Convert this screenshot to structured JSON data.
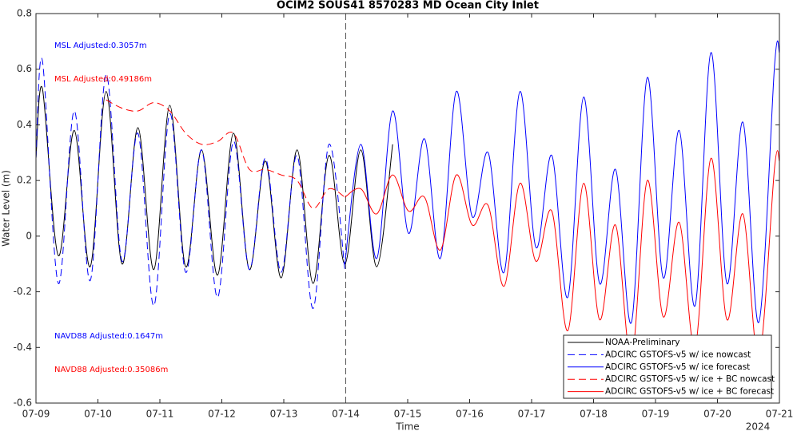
{
  "chart_data": {
    "type": "line",
    "title": "OCIM2 SOUS41 8570283 MD Ocean City Inlet",
    "xlabel": "Time",
    "ylabel": "Water Level (m)",
    "xaxis_year": "2024",
    "x": [
      "2024-07-09T00:00",
      "2024-07-09T02:30",
      "2024-07-09T08:40",
      "2024-07-09T14:50",
      "2024-07-09T21:00",
      "2024-07-10T03:10",
      "2024-07-10T09:20",
      "2024-07-10T15:30",
      "2024-07-10T21:40",
      "2024-07-11T03:50",
      "2024-07-11T10:00",
      "2024-07-11T16:10",
      "2024-07-11T22:20",
      "2024-07-12T04:30",
      "2024-07-12T10:40",
      "2024-07-12T16:50",
      "2024-07-12T23:00",
      "2024-07-13T05:10",
      "2024-07-13T11:20",
      "2024-07-13T17:30",
      "2024-07-13T23:40",
      "2024-07-14T05:50",
      "2024-07-14T12:00",
      "2024-07-14T18:10",
      "2024-07-15T00:20",
      "2024-07-15T06:30",
      "2024-07-15T12:40",
      "2024-07-15T18:50",
      "2024-07-16T01:00",
      "2024-07-16T07:10",
      "2024-07-16T13:20",
      "2024-07-16T19:30",
      "2024-07-17T01:40",
      "2024-07-17T07:50",
      "2024-07-17T14:00",
      "2024-07-17T20:10",
      "2024-07-18T02:20",
      "2024-07-18T08:30",
      "2024-07-18T14:40",
      "2024-07-18T20:50",
      "2024-07-19T03:00",
      "2024-07-19T09:10",
      "2024-07-19T15:20",
      "2024-07-19T21:30",
      "2024-07-20T03:40",
      "2024-07-20T09:50",
      "2024-07-20T16:00",
      "2024-07-20T22:10",
      "2024-07-21T00:00"
    ],
    "series": [
      {
        "name": "NOAA-Preliminary",
        "color": "#000000",
        "dashed": false,
        "values": [
          0.28,
          0.53,
          -0.07,
          0.38,
          -0.11,
          0.52,
          -0.1,
          0.39,
          -0.12,
          0.47,
          -0.11,
          0.31,
          -0.14,
          0.37,
          -0.12,
          0.27,
          -0.15,
          0.31,
          -0.17,
          0.29,
          -0.1,
          0.31,
          -0.11,
          0.33,
          null,
          null,
          null,
          null,
          null,
          null,
          null,
          null,
          null,
          null,
          null,
          null,
          null,
          null,
          null,
          null,
          null,
          null,
          null,
          null,
          null,
          null,
          null,
          null,
          null
        ]
      },
      {
        "name": "ADCIRC GSTOFS-v5 w/ ice nowcast",
        "color": "#0000ff",
        "dashed": true,
        "values": [
          0.28,
          0.63,
          -0.17,
          0.45,
          -0.16,
          0.58,
          -0.09,
          0.37,
          -0.25,
          0.44,
          -0.13,
          0.31,
          -0.22,
          0.34,
          -0.12,
          0.28,
          -0.13,
          0.29,
          -0.26,
          0.33,
          -0.12,
          null,
          null,
          null,
          null,
          null,
          null,
          null,
          null,
          null,
          null,
          null,
          null,
          null,
          null,
          null,
          null,
          null,
          null,
          null,
          null,
          null,
          null,
          null,
          null,
          null,
          null,
          null,
          null
        ]
      },
      {
        "name": "ADCIRC GSTOFS-v5 w/ ice forecast",
        "color": "#0000ff",
        "dashed": false,
        "values": [
          null,
          null,
          null,
          null,
          null,
          null,
          null,
          null,
          null,
          null,
          null,
          null,
          null,
          null,
          null,
          null,
          null,
          null,
          null,
          null,
          -0.1,
          0.33,
          -0.08,
          0.45,
          0.01,
          0.35,
          -0.08,
          0.52,
          0.07,
          0.3,
          -0.13,
          0.52,
          -0.04,
          0.29,
          -0.22,
          0.5,
          -0.17,
          0.24,
          -0.31,
          0.57,
          -0.15,
          0.38,
          -0.25,
          0.66,
          -0.17,
          0.41,
          -0.31,
          0.62,
          0.66
        ]
      },
      {
        "name": "ADCIRC GSTOFS-v5 w/ ice + BC nowcast",
        "color": "#ff0000",
        "dashed": true,
        "values": [
          null,
          null,
          null,
          null,
          null,
          0.49,
          0.46,
          0.45,
          0.48,
          0.45,
          0.37,
          0.33,
          0.34,
          0.37,
          0.24,
          0.24,
          0.22,
          0.2,
          0.1,
          0.17,
          0.14,
          null,
          null,
          null,
          null,
          null,
          null,
          null,
          null,
          null,
          null,
          null,
          null,
          null,
          null,
          null,
          null,
          null,
          null,
          null,
          null,
          null,
          null,
          null,
          null,
          null,
          null,
          null,
          null
        ]
      },
      {
        "name": "ADCIRC GSTOFS-v5 w/ ice + BC forecast",
        "color": "#ff0000",
        "dashed": false,
        "values": [
          null,
          null,
          null,
          null,
          null,
          null,
          null,
          null,
          null,
          null,
          null,
          null,
          null,
          null,
          null,
          null,
          null,
          null,
          null,
          null,
          0.14,
          0.17,
          0.08,
          0.22,
          0.09,
          0.14,
          -0.05,
          0.22,
          0.04,
          0.11,
          -0.18,
          0.19,
          -0.09,
          0.09,
          -0.34,
          0.19,
          -0.3,
          0.04,
          -0.44,
          0.2,
          -0.29,
          0.05,
          -0.4,
          0.28,
          -0.3,
          0.08,
          -0.44,
          0.25,
          0.27
        ]
      }
    ],
    "xlim": [
      "2024-07-09T00:00",
      "2024-07-21T00:00"
    ],
    "xticks": [
      {
        "value": "2024-07-09T00:00",
        "label": "07-09"
      },
      {
        "value": "2024-07-10T00:00",
        "label": "07-10"
      },
      {
        "value": "2024-07-11T00:00",
        "label": "07-11"
      },
      {
        "value": "2024-07-12T00:00",
        "label": "07-12"
      },
      {
        "value": "2024-07-13T00:00",
        "label": "07-13"
      },
      {
        "value": "2024-07-14T00:00",
        "label": "07-14"
      },
      {
        "value": "2024-07-15T00:00",
        "label": "07-15"
      },
      {
        "value": "2024-07-16T00:00",
        "label": "07-16"
      },
      {
        "value": "2024-07-17T00:00",
        "label": "07-17"
      },
      {
        "value": "2024-07-18T00:00",
        "label": "07-18"
      },
      {
        "value": "2024-07-19T00:00",
        "label": "07-19"
      },
      {
        "value": "2024-07-20T00:00",
        "label": "07-20"
      },
      {
        "value": "2024-07-21T00:00",
        "label": "07-21"
      }
    ],
    "ylim": [
      -0.6,
      0.8
    ],
    "yticks": [
      -0.6,
      -0.4,
      -0.2,
      0,
      0.2,
      0.4,
      0.6,
      0.8
    ],
    "vline_x": "2024-07-14T00:00",
    "grid": false,
    "legend_position": "lower right",
    "annotations": [
      {
        "text": "MSL Adjusted:0.3057m",
        "color": "#0000ff"
      },
      {
        "text": "MSL Adjusted:0.49186m",
        "color": "#ff0000"
      },
      {
        "text": "NAVD88 Adjusted:0.1647m",
        "color": "#0000ff"
      },
      {
        "text": "NAVD88 Adjusted:0.35086m",
        "color": "#ff0000"
      }
    ]
  }
}
